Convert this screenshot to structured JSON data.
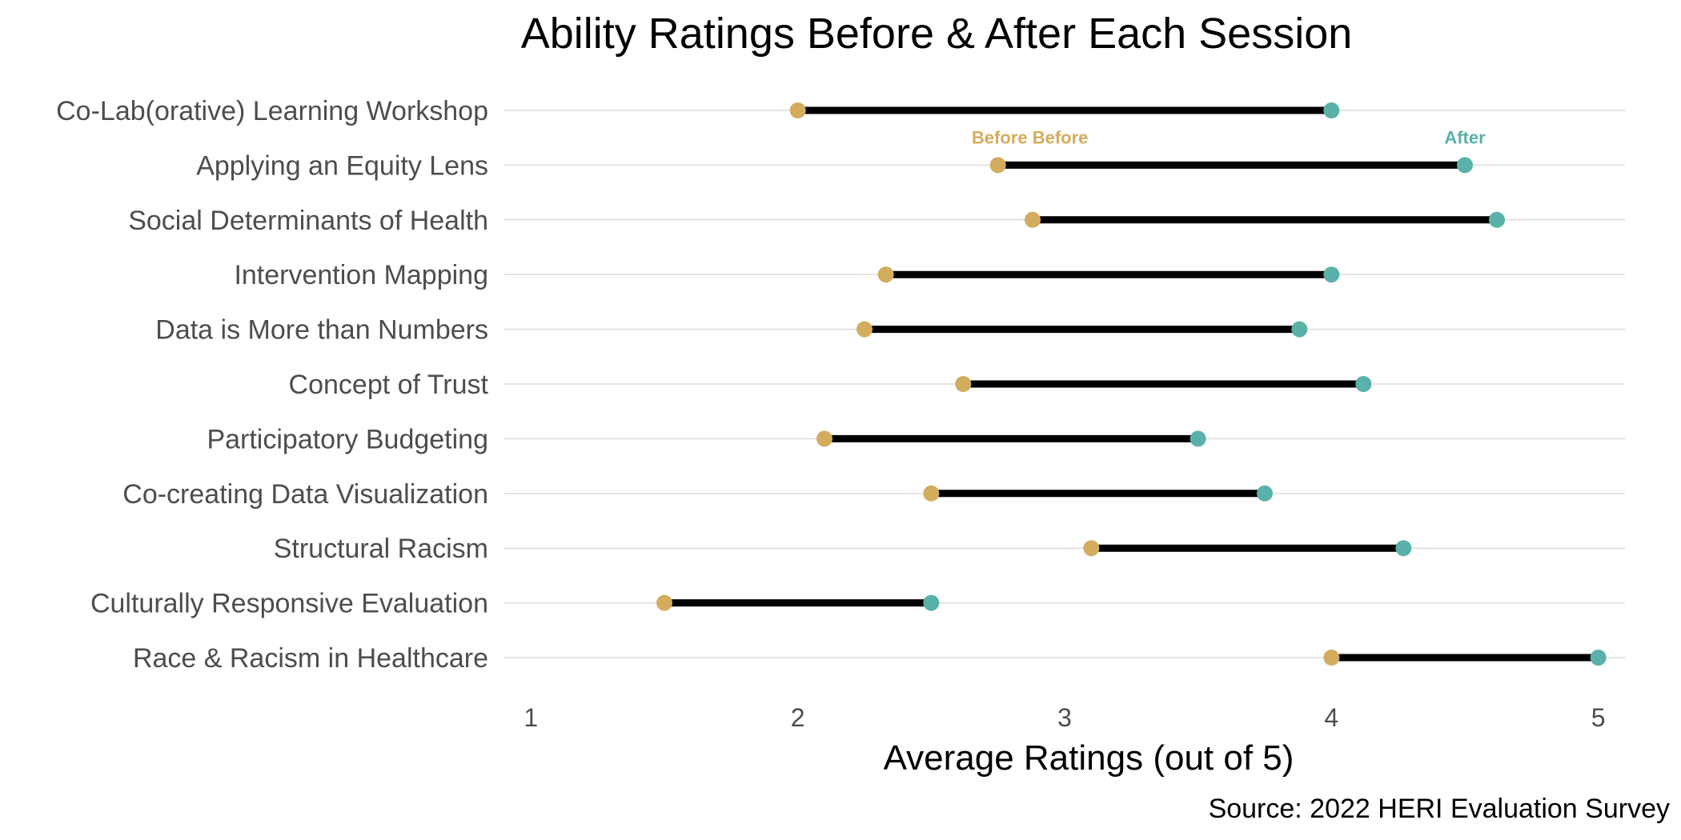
{
  "chart_data": {
    "type": "dumbbell",
    "title": "Ability Ratings Before & After Each Session",
    "xlabel": "Average Ratings (out of 5)",
    "ylabel": "",
    "caption": "Source: 2022 HERI Evaluation Survey",
    "xlim": [
      0.9,
      5.1
    ],
    "x_ticks": [
      1,
      2,
      3,
      4,
      5
    ],
    "grid": "horizontal-only",
    "legend": "none",
    "colors": {
      "before": "#D4AC5E",
      "after": "#5AB1A9",
      "segment": "#000000"
    },
    "categories": [
      "Co-Lab(orative) Learning Workshop",
      "Applying an Equity Lens",
      "Social Determinants of Health",
      "Intervention Mapping",
      "Data is More than Numbers",
      "Concept of Trust",
      "Participatory Budgeting",
      "Co-creating Data Visualization",
      "Structural Racism",
      "Culturally Responsive Evaluation",
      "Race & Racism in Healthcare"
    ],
    "series": [
      {
        "name": "Before",
        "values": [
          2.0,
          2.75,
          2.88,
          2.33,
          2.25,
          2.62,
          2.1,
          2.5,
          3.1,
          1.5,
          4.0
        ]
      },
      {
        "name": "After",
        "values": [
          4.0,
          4.5,
          4.62,
          4.0,
          3.88,
          4.12,
          3.5,
          3.75,
          4.27,
          2.5,
          5.0
        ]
      }
    ],
    "annotations": [
      {
        "text": "Before Before",
        "series": "Before",
        "category_index": 1
      },
      {
        "text": "After",
        "series": "After",
        "category_index": 1
      }
    ]
  }
}
